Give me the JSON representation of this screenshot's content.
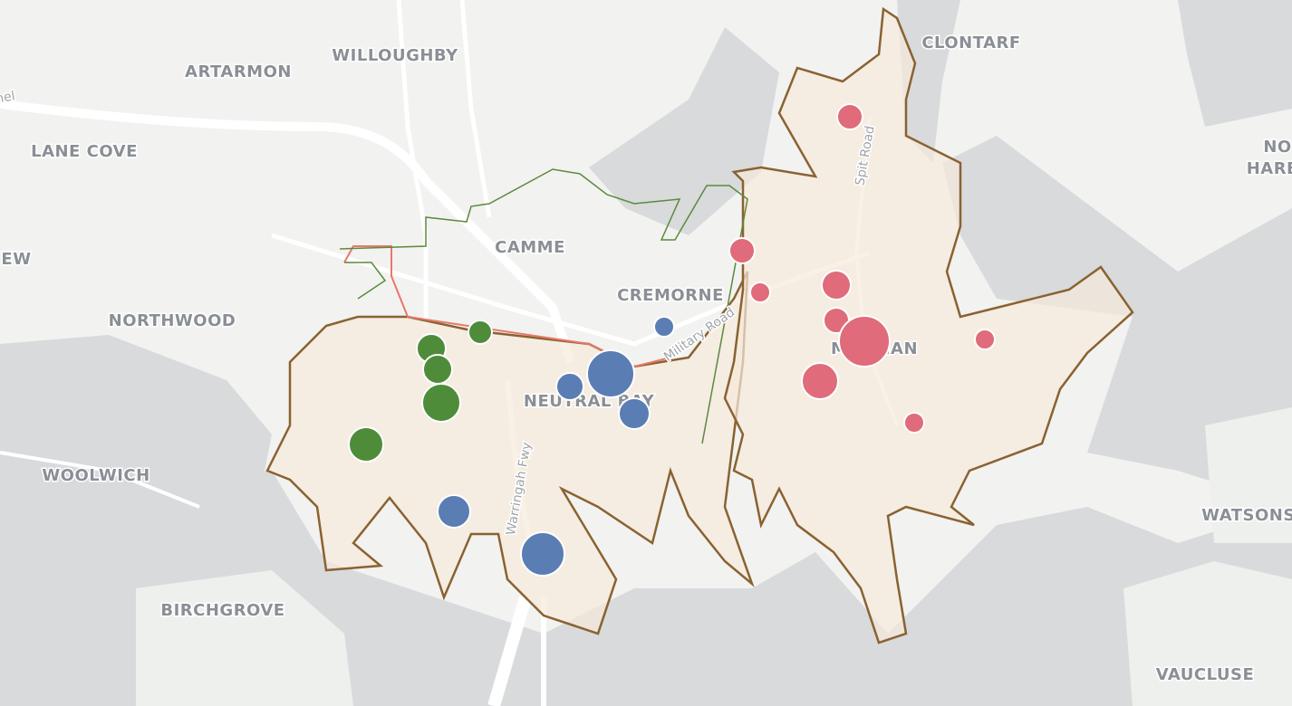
{
  "places": [
    "WILLOUGHBY",
    "ARTARMON",
    "LANE COVE",
    "EW",
    "NORTHWOOD",
    "WOOLWICH",
    "BIRCHGROVE",
    "CAMME",
    "CREMORNE",
    "NEUTRAL BAY",
    "MOSMAN",
    "CLONTARF",
    "NO",
    "HARB",
    "WATSONS",
    "VAUCLUSE"
  ],
  "roads": [
    "Warringah Fwy",
    "Spit Road",
    "Military Road",
    "nel"
  ]
}
